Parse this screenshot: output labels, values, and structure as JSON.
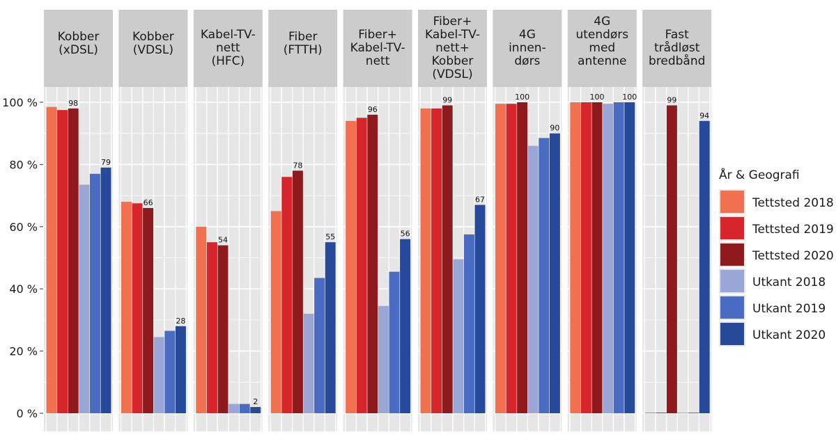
{
  "chart_data": {
    "type": "bar",
    "facets": [
      "Kobber\n(xDSL)",
      "Kobber\n(VDSL)",
      "Kabel-TV-\nnett\n(HFC)",
      "Fiber\n(FTTH)",
      "Fiber+\nKabel-TV-\nnett",
      "Fiber+\nKabel-TV-\nnett+\nKobber\n(VDSL)",
      "4G\ninnen-\ndørs",
      "4G\nutendørs\nmed\nantenne",
      "Fast\ntrådløst\nbredbånd"
    ],
    "series": [
      {
        "name": "Tettsted 2018",
        "color": "#f07050",
        "values": [
          98.5,
          68,
          60,
          65,
          94,
          98,
          99.5,
          100,
          0
        ]
      },
      {
        "name": "Tettsted 2019",
        "color": "#d7262b",
        "values": [
          97.5,
          67.5,
          55,
          76,
          95,
          98,
          99.5,
          100,
          0
        ]
      },
      {
        "name": "Tettsted 2020",
        "color": "#8e1a1e",
        "values": [
          98,
          66,
          54,
          78,
          96,
          99,
          100,
          100,
          99
        ]
      },
      {
        "name": "Utkant 2018",
        "color": "#9aa7d6",
        "values": [
          73.5,
          24.5,
          3,
          32,
          34.5,
          49.5,
          86,
          99.5,
          0
        ]
      },
      {
        "name": "Utkant 2019",
        "color": "#4a6bc2",
        "values": [
          77,
          26.5,
          3,
          43.5,
          45.5,
          57.5,
          88.5,
          100,
          0
        ]
      },
      {
        "name": "Utkant 2020",
        "color": "#27499a",
        "values": [
          79,
          28,
          2,
          55,
          56,
          67,
          90,
          100,
          94
        ]
      }
    ],
    "data_labels": {
      "Tettsted 2020": [
        98,
        66,
        54,
        78,
        96,
        99,
        100,
        100,
        99
      ],
      "Utkant 2020": [
        79,
        28,
        2,
        55,
        56,
        67,
        90,
        100,
        94
      ]
    },
    "yticks": [
      "0 %",
      "20 %",
      "40 %",
      "60 %",
      "80 %",
      "100 %"
    ],
    "ytick_values": [
      0,
      20,
      40,
      60,
      80,
      100
    ],
    "ylim": [
      0,
      100
    ],
    "legend_title": "År & Geografi",
    "legend_position": "right",
    "panel_background": "#e6e6e6",
    "strip_background": "#cccccc",
    "grid": true
  }
}
